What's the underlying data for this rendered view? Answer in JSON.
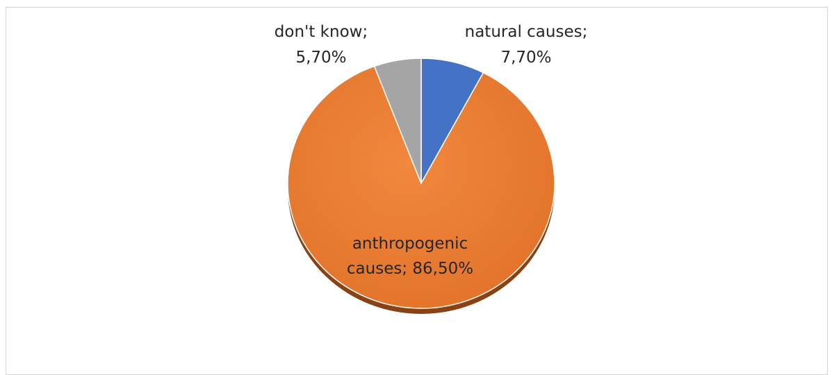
{
  "chart_data": {
    "type": "pie",
    "title": "",
    "slices": [
      {
        "label_line1": "natural causes;",
        "label_line2": "7,70%",
        "category": "natural causes",
        "value": 7.7,
        "color": "#4472c4"
      },
      {
        "label_line1": "anthropogenic",
        "label_line2": "causes; 86,50%",
        "category": "anthropogenic causes",
        "value": 86.5,
        "color": "#ed7d31"
      },
      {
        "label_line1": "don't know;",
        "label_line2": "5,70%",
        "category": "don't know",
        "value": 5.7,
        "color": "#a5a5a5"
      }
    ],
    "start_angle": "12 o'clock",
    "direction": "clockwise",
    "legend": "none",
    "data_labels": "category name and percentage"
  }
}
